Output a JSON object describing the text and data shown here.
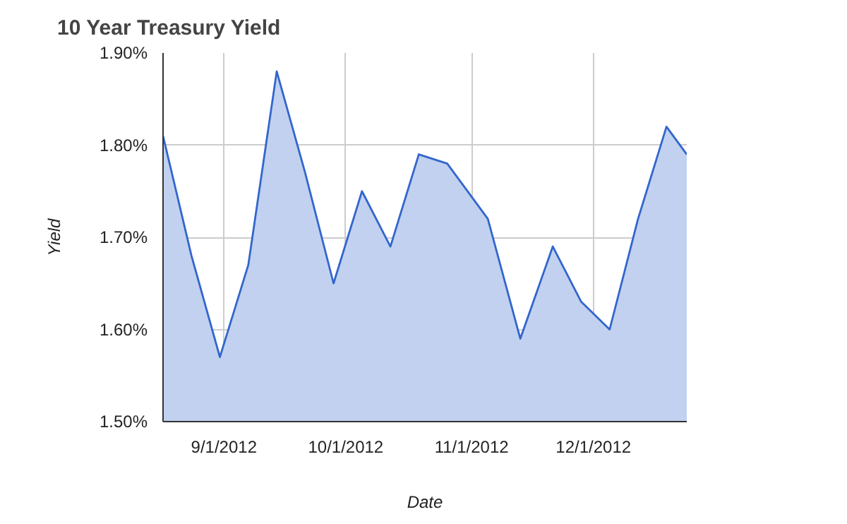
{
  "chart_data": {
    "type": "area",
    "title": "10 Year Treasury Yield",
    "xlabel": "Date",
    "ylabel": "Yield",
    "x": [
      "2012-08-17",
      "2012-08-24",
      "2012-08-31",
      "2012-09-07",
      "2012-09-14",
      "2012-09-21",
      "2012-09-28",
      "2012-10-05",
      "2012-10-12",
      "2012-10-19",
      "2012-10-26",
      "2012-11-05",
      "2012-11-13",
      "2012-11-21",
      "2012-11-28",
      "2012-12-05",
      "2012-12-12",
      "2012-12-19",
      "2012-12-24"
    ],
    "series": [
      {
        "color": "#3366cc",
        "values": [
          1.81,
          1.68,
          1.57,
          1.67,
          1.88,
          1.77,
          1.65,
          1.75,
          1.69,
          1.79,
          1.78,
          1.72,
          1.59,
          1.69,
          1.63,
          1.6,
          1.72,
          1.82,
          1.79
        ]
      }
    ],
    "xlim": [
      "2012-08-17",
      "2012-12-24"
    ],
    "xticks": [
      {
        "value": "2012-09-01",
        "label": "9/1/2012"
      },
      {
        "value": "2012-10-01",
        "label": "10/1/2012"
      },
      {
        "value": "2012-11-01",
        "label": "11/1/2012"
      },
      {
        "value": "2012-12-01",
        "label": "12/1/2012"
      }
    ],
    "ylim": [
      1.5,
      1.9
    ],
    "yticks": [
      {
        "value": 1.5,
        "label": "1.50%"
      },
      {
        "value": 1.6,
        "label": "1.60%"
      },
      {
        "value": 1.7,
        "label": "1.70%"
      },
      {
        "value": 1.8,
        "label": "1.80%"
      },
      {
        "value": 1.9,
        "label": "1.90%"
      }
    ],
    "grid": true
  }
}
